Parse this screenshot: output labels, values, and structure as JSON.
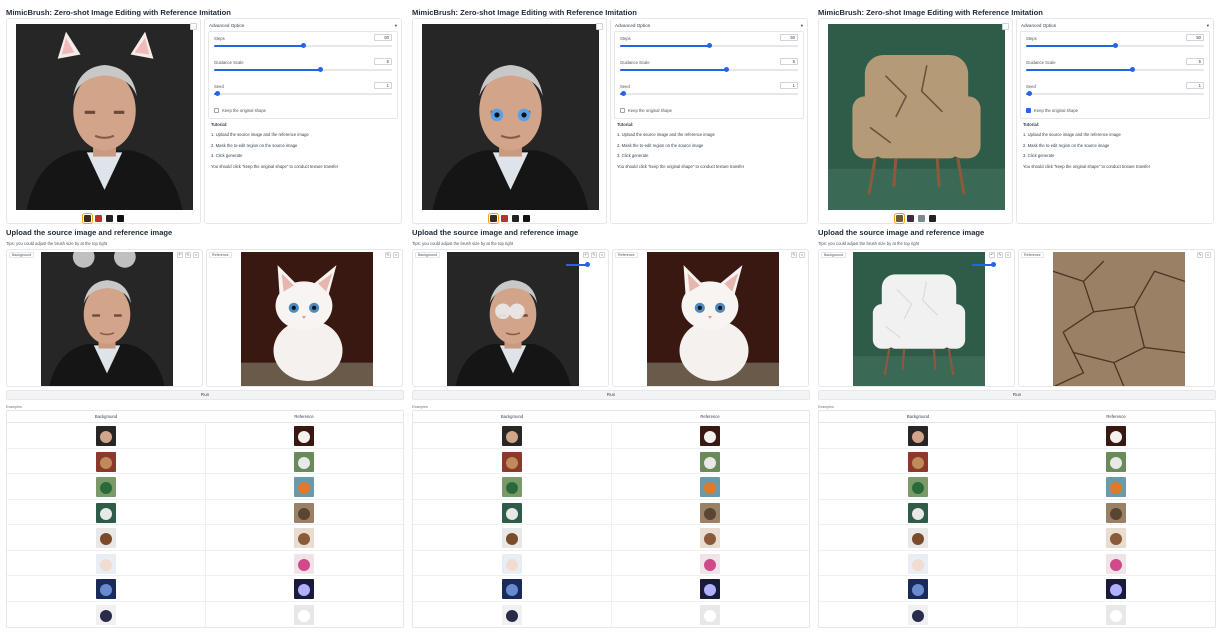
{
  "panels": [
    {
      "title": "MimicBrush: Zero-shot Image Editing with Reference Imitation",
      "result_theme": "portrait-cat",
      "thumbs": [
        "#3a2a1e",
        "#b0352a",
        "#222222",
        "#111111"
      ],
      "advanced": {
        "header": "Advanced Option",
        "steps_label": "Steps",
        "steps_value": "50",
        "steps_pct": 50,
        "guidance_label": "Guidance Scale",
        "guidance_value": "5",
        "guidance_pct": 60,
        "seed_label": "Seed",
        "seed_value": "1",
        "seed_pct": 2,
        "keep_shape_label": "Keep the original shape",
        "keep_shape_checked": false
      },
      "tutorial": {
        "title": "Tutorial:",
        "lines": [
          "1. Upload the source image and the reference image",
          "2. Mask the to-edit region on the source image",
          "3. Click generate"
        ],
        "note": "You should click \"keep the original shape\" to conduct texture transfer"
      },
      "section_title": "Upload the source image and reference image",
      "tip": "Tips: you could adjust the brush size by at the top right",
      "background_label": "Background",
      "reference_label": "Reference",
      "source_theme": "portrait-mask",
      "reference_theme": "kitten",
      "run_label": "Run",
      "examples_label": "Examples",
      "col_background": "Background",
      "col_reference": "Reference"
    },
    {
      "title": "MimicBrush: Zero-shot Image Editing with Reference Imitation",
      "result_theme": "portrait-eyes",
      "thumbs": [
        "#3a2a1e",
        "#b0352a",
        "#222222",
        "#111111"
      ],
      "advanced": {
        "header": "Advanced Option",
        "steps_label": "Steps",
        "steps_value": "50",
        "steps_pct": 50,
        "guidance_label": "Guidance Scale",
        "guidance_value": "5",
        "guidance_pct": 60,
        "seed_label": "Seed",
        "seed_value": "1",
        "seed_pct": 2,
        "keep_shape_label": "Keep the original shape",
        "keep_shape_checked": false
      },
      "tutorial": {
        "title": "Tutorial:",
        "lines": [
          "1. Upload the source image and the reference image",
          "2. Mask the to-edit region on the source image",
          "3. Click generate"
        ],
        "note": "You should click \"keep the original shape\" to conduct texture transfer"
      },
      "section_title": "Upload the source image and reference image",
      "tip": "Tips: you could adjust the brush size by at the top right",
      "background_label": "Background",
      "reference_label": "Reference",
      "source_theme": "portrait-eyemask",
      "reference_theme": "kitten",
      "run_label": "Run",
      "examples_label": "Examples",
      "col_background": "Background",
      "col_reference": "Reference"
    },
    {
      "title": "MimicBrush: Zero-shot Image Editing with Reference Imitation",
      "result_theme": "chair-crack",
      "thumbs": [
        "#6b5a3e",
        "#3a2a4a",
        "#7a8a8e",
        "#222222"
      ],
      "advanced": {
        "header": "Advanced Option",
        "steps_label": "Steps",
        "steps_value": "50",
        "steps_pct": 50,
        "guidance_label": "Guidance Scale",
        "guidance_value": "5",
        "guidance_pct": 60,
        "seed_label": "Seed",
        "seed_value": "1",
        "seed_pct": 2,
        "keep_shape_label": "Keep the original shape",
        "keep_shape_checked": true
      },
      "tutorial": {
        "title": "Tutorial:",
        "lines": [
          "1. Upload the source image and the reference image",
          "2. Mask the to-edit region on the source image",
          "3. Click generate"
        ],
        "note": "You should click \"keep the original shape\" to conduct texture transfer"
      },
      "section_title": "Upload the source image and reference image",
      "tip": "Tips: you could adjust the brush size by at the top right",
      "background_label": "Background",
      "reference_label": "Reference",
      "source_theme": "chair-white",
      "reference_theme": "crack",
      "run_label": "Run",
      "examples_label": "Examples",
      "col_background": "Background",
      "col_reference": "Reference"
    }
  ],
  "example_rows": [
    {
      "bg": "portrait",
      "ref": "kitten"
    },
    {
      "bg": "wood-cabin",
      "ref": "mountain"
    },
    {
      "bg": "figure-green",
      "ref": "figure-orange"
    },
    {
      "bg": "chair-green",
      "ref": "crack"
    },
    {
      "bg": "cabin-snow",
      "ref": "cabin-brown"
    },
    {
      "bg": "woman-white",
      "ref": "woman-pink"
    },
    {
      "bg": "night-sky",
      "ref": "lightning"
    },
    {
      "bg": "bowl-berries",
      "ref": "bowl-white"
    }
  ]
}
